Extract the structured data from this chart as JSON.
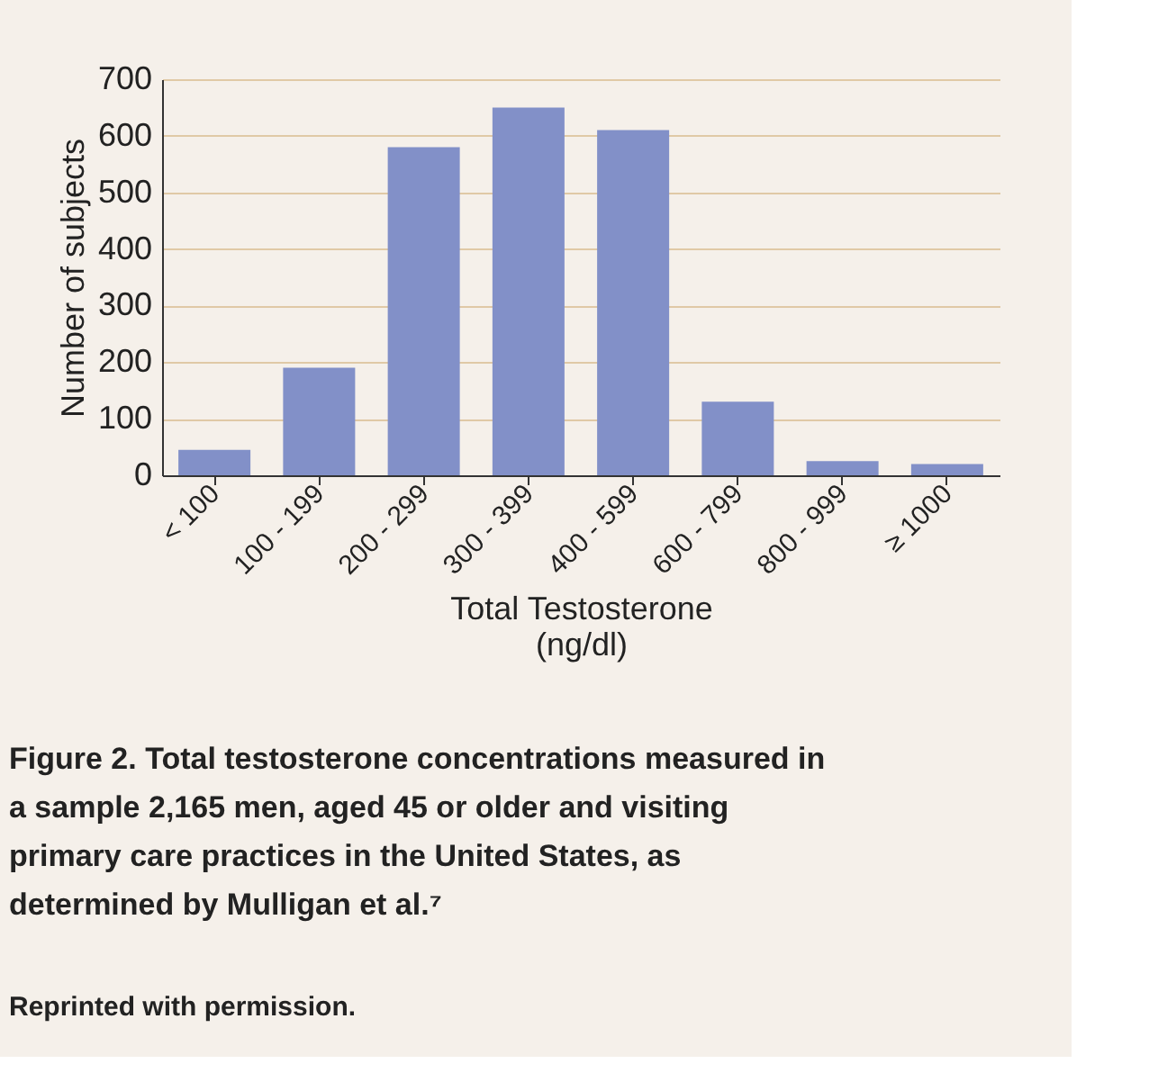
{
  "chart_data": {
    "type": "bar",
    "categories": [
      "< 100",
      "100 - 199",
      "200 - 299",
      "300 - 399",
      "400 - 599",
      "600 - 799",
      "800 - 999",
      "≥ 1000"
    ],
    "values": [
      45,
      190,
      580,
      650,
      610,
      130,
      25,
      20
    ],
    "color": "#8290c8",
    "xlabel": "Total Testosterone\n(ng/dl)",
    "ylabel": "Number of subjects",
    "ylim": [
      0,
      700
    ],
    "yticks": [
      0,
      100,
      200,
      300,
      400,
      500,
      600,
      700
    ],
    "grid": "y",
    "annotations": [
      "Figure 2. Total testosterone concentrations measured in a sample 2,165 men, aged 45 or older and visiting primary care practices in the United States, as determined by Mulligan et al.⁷",
      "Reprinted with permission."
    ]
  }
}
